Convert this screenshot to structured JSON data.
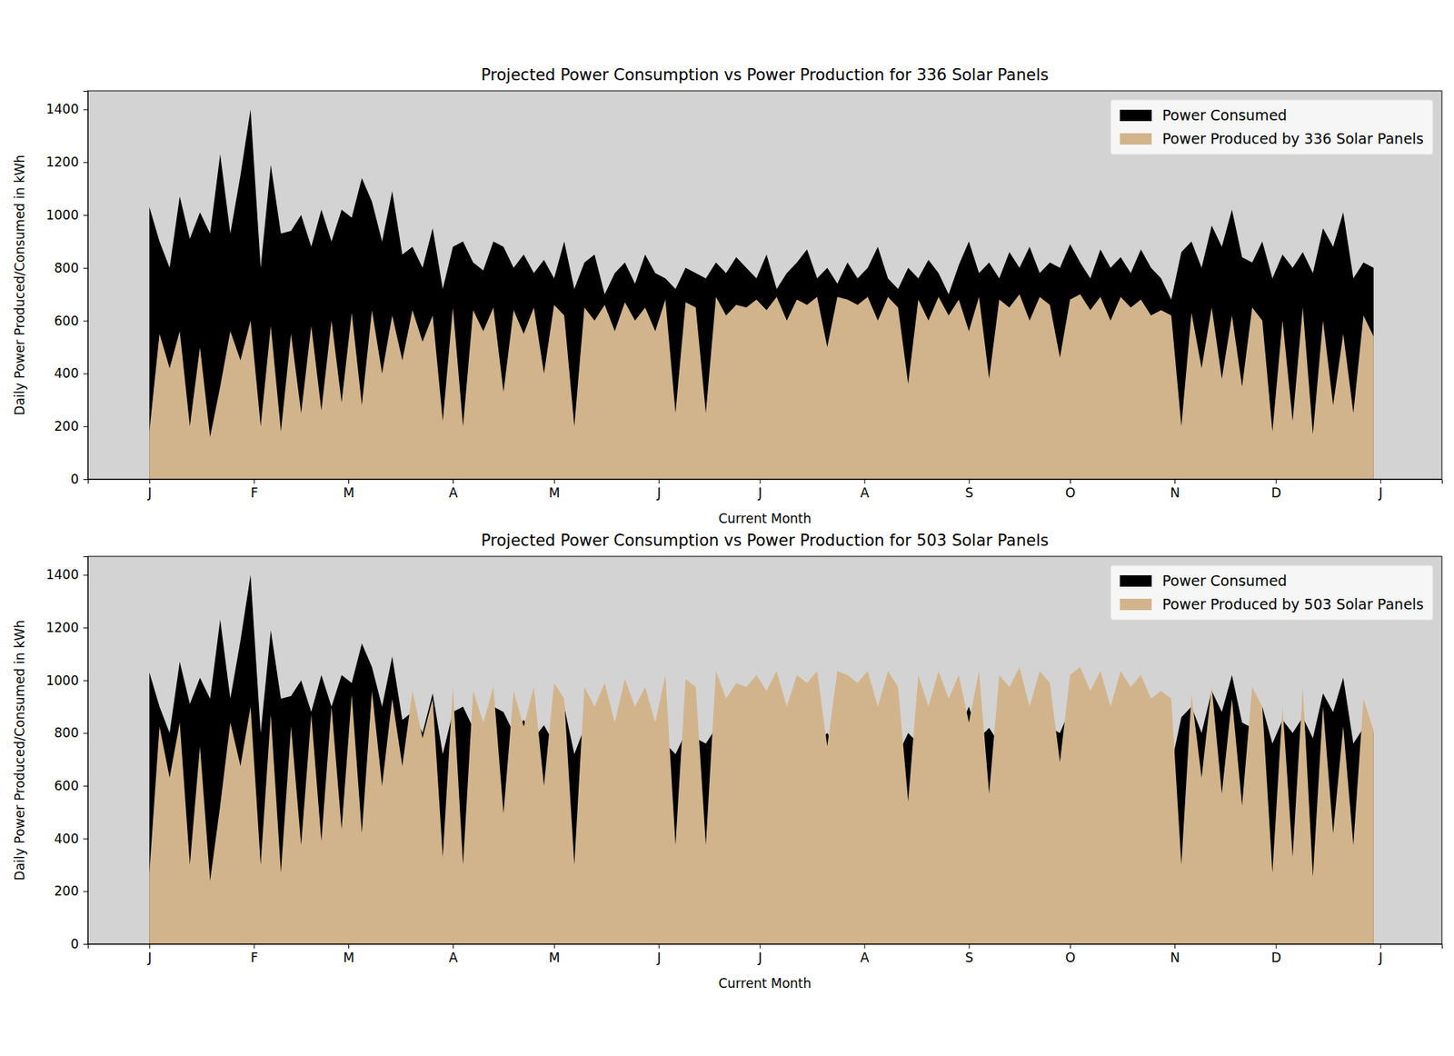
{
  "chart_data": [
    {
      "type": "area",
      "title": "Projected Power Consumption vs Power Production for 336 Solar Panels",
      "xlabel": "Current Month",
      "ylabel": "Daily Power Produced/Consumed in kWh",
      "legend": "upper right",
      "x": [
        0,
        3,
        6,
        9,
        12,
        15,
        18,
        21,
        24,
        27,
        30,
        33,
        36,
        39,
        42,
        45,
        48,
        51,
        54,
        57,
        60,
        63,
        66,
        69,
        72,
        75,
        78,
        81,
        84,
        87,
        90,
        93,
        96,
        99,
        102,
        105,
        108,
        111,
        114,
        117,
        120,
        123,
        126,
        129,
        132,
        135,
        138,
        141,
        144,
        147,
        150,
        153,
        156,
        159,
        162,
        165,
        168,
        171,
        174,
        177,
        180,
        183,
        186,
        189,
        192,
        195,
        198,
        201,
        204,
        207,
        210,
        213,
        216,
        219,
        222,
        225,
        228,
        231,
        234,
        237,
        240,
        243,
        246,
        249,
        252,
        255,
        258,
        261,
        264,
        267,
        270,
        273,
        276,
        279,
        282,
        285,
        288,
        291,
        294,
        297,
        300,
        303,
        306,
        309,
        312,
        315,
        318,
        321,
        324,
        327,
        330,
        333,
        336,
        339,
        342,
        345,
        348,
        351,
        354,
        357,
        360,
        363
      ],
      "xlim": [
        -18.25,
        383.25
      ],
      "xticks": [
        {
          "value": 0,
          "label": "J"
        },
        {
          "value": 31,
          "label": "F"
        },
        {
          "value": 59,
          "label": "M"
        },
        {
          "value": 90,
          "label": "A"
        },
        {
          "value": 120,
          "label": "M"
        },
        {
          "value": 151,
          "label": "J"
        },
        {
          "value": 181,
          "label": "J"
        },
        {
          "value": 212,
          "label": "A"
        },
        {
          "value": 243,
          "label": "S"
        },
        {
          "value": 273,
          "label": "O"
        },
        {
          "value": 304,
          "label": "N"
        },
        {
          "value": 334,
          "label": "D"
        },
        {
          "value": 365,
          "label": "J"
        }
      ],
      "ylim": [
        0,
        1470
      ],
      "yticks": [
        0,
        200,
        400,
        600,
        800,
        1000,
        1200,
        1400
      ],
      "series": [
        {
          "name": "Power Consumed",
          "color": "#000000",
          "values": [
            1030,
            900,
            800,
            1070,
            910,
            1010,
            930,
            1230,
            930,
            1150,
            1400,
            800,
            1190,
            930,
            940,
            1000,
            880,
            1020,
            900,
            1020,
            990,
            1140,
            1050,
            900,
            1090,
            850,
            880,
            800,
            950,
            720,
            880,
            900,
            820,
            790,
            900,
            880,
            800,
            850,
            780,
            830,
            760,
            900,
            720,
            820,
            850,
            700,
            780,
            820,
            740,
            850,
            780,
            760,
            720,
            800,
            780,
            760,
            820,
            780,
            840,
            800,
            760,
            850,
            720,
            780,
            820,
            870,
            760,
            800,
            740,
            820,
            760,
            800,
            880,
            760,
            720,
            800,
            760,
            830,
            780,
            700,
            810,
            900,
            780,
            820,
            760,
            860,
            800,
            880,
            780,
            820,
            800,
            890,
            820,
            760,
            870,
            800,
            840,
            780,
            870,
            800,
            760,
            680,
            860,
            900,
            800,
            960,
            880,
            1020,
            840,
            820,
            900,
            760,
            850,
            800,
            860,
            780,
            950,
            880,
            1010,
            760,
            820,
            800
          ]
        },
        {
          "name": "Power Produced by 336 Solar Panels",
          "color": "#d2b48c",
          "values": [
            180,
            550,
            420,
            560,
            200,
            500,
            160,
            350,
            560,
            450,
            600,
            200,
            580,
            180,
            550,
            250,
            580,
            260,
            600,
            290,
            630,
            280,
            640,
            400,
            620,
            450,
            640,
            520,
            620,
            220,
            650,
            200,
            640,
            560,
            650,
            330,
            640,
            550,
            650,
            400,
            660,
            620,
            200,
            650,
            600,
            660,
            560,
            670,
            600,
            650,
            560,
            680,
            250,
            670,
            650,
            250,
            690,
            620,
            660,
            650,
            680,
            640,
            690,
            600,
            680,
            660,
            690,
            500,
            690,
            680,
            660,
            690,
            600,
            690,
            650,
            360,
            680,
            600,
            690,
            620,
            680,
            560,
            690,
            380,
            680,
            650,
            700,
            600,
            690,
            660,
            460,
            680,
            700,
            640,
            690,
            600,
            690,
            650,
            680,
            620,
            640,
            620,
            200,
            630,
            420,
            650,
            380,
            620,
            350,
            650,
            600,
            180,
            600,
            220,
            650,
            170,
            600,
            280,
            550,
            250,
            620,
            540
          ]
        }
      ]
    },
    {
      "type": "area",
      "title": "Projected Power Consumption vs Power Production for 503 Solar Panels",
      "xlabel": "Current Month",
      "ylabel": "Daily Power Produced/Consumed in kWh",
      "legend": "upper right",
      "x": [
        0,
        3,
        6,
        9,
        12,
        15,
        18,
        21,
        24,
        27,
        30,
        33,
        36,
        39,
        42,
        45,
        48,
        51,
        54,
        57,
        60,
        63,
        66,
        69,
        72,
        75,
        78,
        81,
        84,
        87,
        90,
        93,
        96,
        99,
        102,
        105,
        108,
        111,
        114,
        117,
        120,
        123,
        126,
        129,
        132,
        135,
        138,
        141,
        144,
        147,
        150,
        153,
        156,
        159,
        162,
        165,
        168,
        171,
        174,
        177,
        180,
        183,
        186,
        189,
        192,
        195,
        198,
        201,
        204,
        207,
        210,
        213,
        216,
        219,
        222,
        225,
        228,
        231,
        234,
        237,
        240,
        243,
        246,
        249,
        252,
        255,
        258,
        261,
        264,
        267,
        270,
        273,
        276,
        279,
        282,
        285,
        288,
        291,
        294,
        297,
        300,
        303,
        306,
        309,
        312,
        315,
        318,
        321,
        324,
        327,
        330,
        333,
        336,
        339,
        342,
        345,
        348,
        351,
        354,
        357,
        360,
        363
      ],
      "xlim": [
        -18.25,
        383.25
      ],
      "xticks": [
        {
          "value": 0,
          "label": "J"
        },
        {
          "value": 31,
          "label": "F"
        },
        {
          "value": 59,
          "label": "M"
        },
        {
          "value": 90,
          "label": "A"
        },
        {
          "value": 120,
          "label": "M"
        },
        {
          "value": 151,
          "label": "J"
        },
        {
          "value": 181,
          "label": "J"
        },
        {
          "value": 212,
          "label": "A"
        },
        {
          "value": 243,
          "label": "S"
        },
        {
          "value": 273,
          "label": "O"
        },
        {
          "value": 304,
          "label": "N"
        },
        {
          "value": 334,
          "label": "D"
        },
        {
          "value": 365,
          "label": "J"
        }
      ],
      "ylim": [
        0,
        1470
      ],
      "yticks": [
        0,
        200,
        400,
        600,
        800,
        1000,
        1200,
        1400
      ],
      "series": [
        {
          "name": "Power Consumed",
          "color": "#000000",
          "values": [
            1030,
            900,
            800,
            1070,
            910,
            1010,
            930,
            1230,
            930,
            1150,
            1400,
            800,
            1190,
            930,
            940,
            1000,
            880,
            1020,
            900,
            1020,
            990,
            1140,
            1050,
            900,
            1090,
            850,
            880,
            800,
            950,
            720,
            880,
            900,
            820,
            790,
            900,
            880,
            800,
            850,
            780,
            830,
            760,
            900,
            720,
            820,
            850,
            700,
            780,
            820,
            740,
            850,
            780,
            760,
            720,
            800,
            780,
            760,
            820,
            780,
            840,
            800,
            760,
            850,
            720,
            780,
            820,
            870,
            760,
            800,
            740,
            820,
            760,
            800,
            880,
            760,
            720,
            800,
            760,
            830,
            780,
            700,
            810,
            900,
            780,
            820,
            760,
            860,
            800,
            880,
            780,
            820,
            800,
            890,
            820,
            760,
            870,
            800,
            840,
            780,
            870,
            800,
            760,
            680,
            860,
            900,
            800,
            960,
            880,
            1020,
            840,
            820,
            900,
            760,
            850,
            800,
            860,
            780,
            950,
            880,
            1010,
            760,
            820,
            800
          ]
        },
        {
          "name": "Power Produced by 503 Solar Panels",
          "color": "#d2b48c",
          "values": [
            270,
            825,
            630,
            840,
            300,
            750,
            240,
            525,
            840,
            675,
            900,
            300,
            870,
            270,
            825,
            375,
            870,
            390,
            900,
            435,
            945,
            420,
            960,
            600,
            930,
            675,
            960,
            780,
            930,
            330,
            975,
            300,
            960,
            840,
            975,
            495,
            960,
            825,
            975,
            600,
            990,
            930,
            300,
            975,
            900,
            990,
            840,
            1005,
            900,
            975,
            840,
            1020,
            375,
            1005,
            975,
            375,
            1035,
            930,
            990,
            975,
            1020,
            960,
            1035,
            900,
            1020,
            990,
            1035,
            750,
            1035,
            1020,
            990,
            1035,
            900,
            1035,
            975,
            540,
            1020,
            900,
            1035,
            930,
            1020,
            840,
            1035,
            570,
            1020,
            975,
            1050,
            900,
            1035,
            990,
            690,
            1020,
            1050,
            960,
            1035,
            900,
            1035,
            975,
            1020,
            930,
            960,
            930,
            300,
            945,
            630,
            975,
            570,
            930,
            525,
            975,
            900,
            270,
            900,
            330,
            975,
            255,
            900,
            420,
            825,
            375,
            930,
            810
          ]
        }
      ]
    }
  ]
}
